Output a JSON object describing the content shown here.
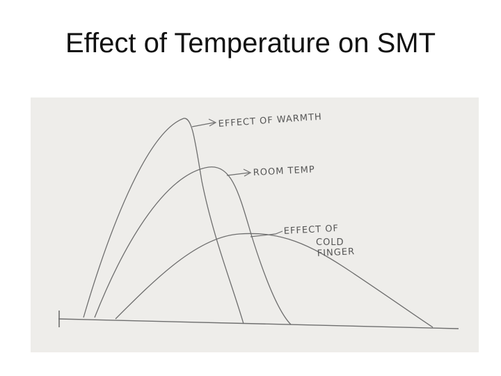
{
  "title": "Effect of Temperature on SMT",
  "colors": {
    "background": "#ffffff",
    "paper": "#eeedea",
    "pencil": "#6e6e6e"
  },
  "diagram": {
    "labels": {
      "warmth": "EFFECT OF WARMTH",
      "room_temp": "ROOM TEMP",
      "cold_line1": "EFFECT OF",
      "cold_line2": "COLD",
      "cold_line3": "FINGER"
    }
  }
}
